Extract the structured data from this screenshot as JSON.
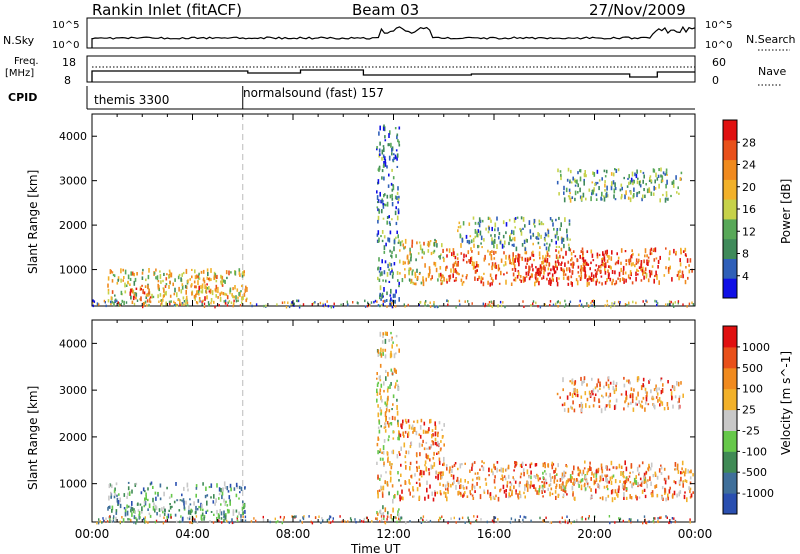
{
  "header": {
    "station": "Rankin Inlet (fitACF)",
    "beam": "Beam 03",
    "date": "27/Nov/2009"
  },
  "strip": {
    "nsky_label": "N.Sky",
    "nsky_ticks": [
      "10^5",
      "10^0"
    ],
    "nsearch_label": "N.Search",
    "nsearch_ticks": [
      "10^5",
      "10^0"
    ],
    "freq_label": "Freq.",
    "freq_unit": "[MHz]",
    "freq_ticks": [
      "18",
      "8"
    ],
    "nave_label": "Nave",
    "nave_ticks": [
      "60",
      "0"
    ],
    "cpid_label": "CPID",
    "cpid_segments": [
      {
        "name": "themis 3300",
        "start_hour": 0
      },
      {
        "name": "normalsound (fast) 157",
        "start_hour": 6
      }
    ]
  },
  "axes": {
    "xlabel": "Time UT",
    "x_ticks": [
      "00:00",
      "04:00",
      "08:00",
      "12:00",
      "16:00",
      "20:00",
      "00:00"
    ],
    "ylabel": "Slant Range [km]",
    "y_ticks": [
      "1000",
      "2000",
      "3000",
      "4000"
    ]
  },
  "chart_data": [
    {
      "type": "heatmap",
      "title": "",
      "xlabel": "Time UT",
      "ylabel": "Slant Range [km]",
      "xlim_hours": [
        0,
        24
      ],
      "ylim_km": [
        180,
        4500
      ],
      "colorbar": {
        "label": "Power [dB]",
        "ticks": [
          "4",
          "8",
          "12",
          "16",
          "20",
          "24",
          "28"
        ],
        "colors": [
          "#1010e6",
          "#2f5fb8",
          "#3f8a5a",
          "#58a858",
          "#c6d24a",
          "#f2b12a",
          "#f08a1e",
          "#e8501a",
          "#e01010"
        ]
      },
      "regions": [
        {
          "t0": 0.6,
          "t1": 6.2,
          "r0": 250,
          "r1": 1050,
          "level": 0.55
        },
        {
          "t0": 1.4,
          "t1": 2.3,
          "r0": 350,
          "r1": 700,
          "level": 0.8
        },
        {
          "t0": 4.0,
          "t1": 5.2,
          "r0": 350,
          "r1": 900,
          "level": 0.7
        },
        {
          "t0": 11.3,
          "t1": 12.2,
          "r0": 300,
          "r1": 4300,
          "level": 0.25
        },
        {
          "t0": 12.2,
          "t1": 14.0,
          "r0": 700,
          "r1": 1700,
          "level": 0.55
        },
        {
          "t0": 13.8,
          "t1": 23.9,
          "r0": 700,
          "r1": 1500,
          "level": 0.8
        },
        {
          "t0": 17.2,
          "t1": 20.6,
          "r0": 800,
          "r1": 1300,
          "level": 0.95
        },
        {
          "t0": 14.5,
          "t1": 19.0,
          "r0": 1500,
          "r1": 2200,
          "level": 0.35
        },
        {
          "t0": 18.5,
          "t1": 23.5,
          "r0": 2600,
          "r1": 3300,
          "level": 0.35
        }
      ]
    },
    {
      "type": "heatmap",
      "title": "",
      "xlabel": "Time UT",
      "ylabel": "Slant Range [km]",
      "xlim_hours": [
        0,
        24
      ],
      "ylim_km": [
        180,
        4500
      ],
      "colorbar": {
        "label": "Velocity [m s^-1]",
        "ticks": [
          "1000",
          "500",
          "100",
          "25",
          "-25",
          "-100",
          "-500",
          "-1000"
        ],
        "colors": [
          "#2a4fb0",
          "#3f6f9a",
          "#3f8a55",
          "#66c84a",
          "#c8c8c8",
          "#f2b12a",
          "#f08a1e",
          "#e8501a",
          "#e01010"
        ]
      },
      "regions": [
        {
          "t0": 0.6,
          "t1": 6.2,
          "r0": 250,
          "r1": 1050,
          "level": 0.3
        },
        {
          "t0": 11.3,
          "t1": 12.2,
          "r0": 300,
          "r1": 4300,
          "level": 0.55
        },
        {
          "t0": 12.2,
          "t1": 14.0,
          "r0": 700,
          "r1": 2400,
          "level": 0.75
        },
        {
          "t0": 13.8,
          "t1": 23.9,
          "r0": 700,
          "r1": 1500,
          "level": 0.72
        },
        {
          "t0": 17.0,
          "t1": 22.0,
          "r0": 900,
          "r1": 1300,
          "level": 0.6
        },
        {
          "t0": 18.5,
          "t1": 23.5,
          "r0": 2600,
          "r1": 3300,
          "level": 0.7
        }
      ]
    }
  ]
}
